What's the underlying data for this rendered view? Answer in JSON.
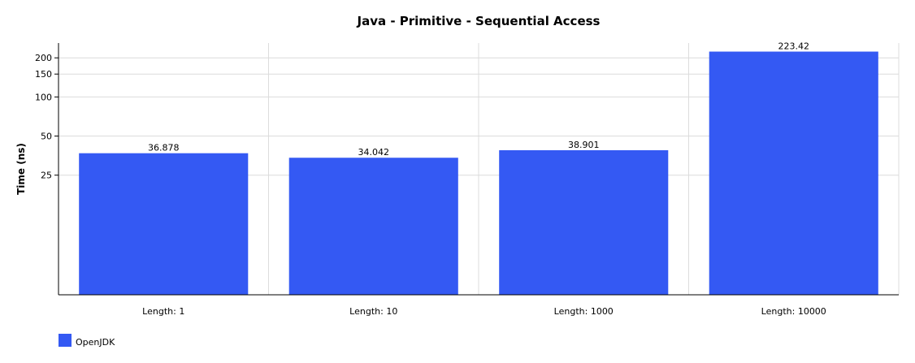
{
  "chart_data": {
    "type": "bar",
    "title": "Java - Primitive - Sequential Access",
    "ylabel": "Time (ns)",
    "xlabel": "",
    "yscale": "log",
    "ylim": [
      3,
      260
    ],
    "yticks": [
      25,
      50,
      100,
      150,
      200
    ],
    "categories": [
      "Length: 1",
      "Length: 10",
      "Length: 1000",
      "Length: 10000"
    ],
    "series": [
      {
        "name": "OpenJDK",
        "color": "#3459f3",
        "values": [
          36.878,
          34.042,
          38.901,
          223.42
        ]
      }
    ],
    "data_labels": [
      "36.878",
      "34.042",
      "38.901",
      "223.42"
    ],
    "legend": "bottom-left",
    "grid": true
  }
}
